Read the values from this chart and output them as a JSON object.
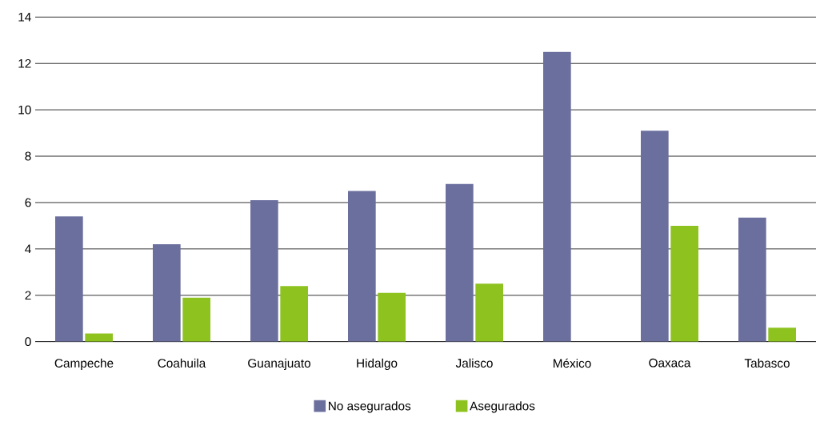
{
  "chart_data": {
    "type": "bar",
    "categories": [
      "Campeche",
      "Coahuila",
      "Guanajuato",
      "Hidalgo",
      "Jalisco",
      "México",
      "Oaxaca",
      "Tabasco"
    ],
    "series": [
      {
        "name": "No asegurados",
        "color": "#6b6f9e",
        "values": [
          5.4,
          4.2,
          6.1,
          6.5,
          6.8,
          12.5,
          9.1,
          5.35
        ]
      },
      {
        "name": "Asegurados",
        "color": "#8dc21f",
        "values": [
          0.35,
          1.9,
          2.4,
          2.1,
          2.5,
          null,
          5.0,
          0.6
        ]
      }
    ],
    "ylim": [
      0,
      14
    ],
    "yticks": [
      0,
      2,
      4,
      6,
      8,
      10,
      12,
      14
    ],
    "grid": "y",
    "legend": "bottom"
  }
}
